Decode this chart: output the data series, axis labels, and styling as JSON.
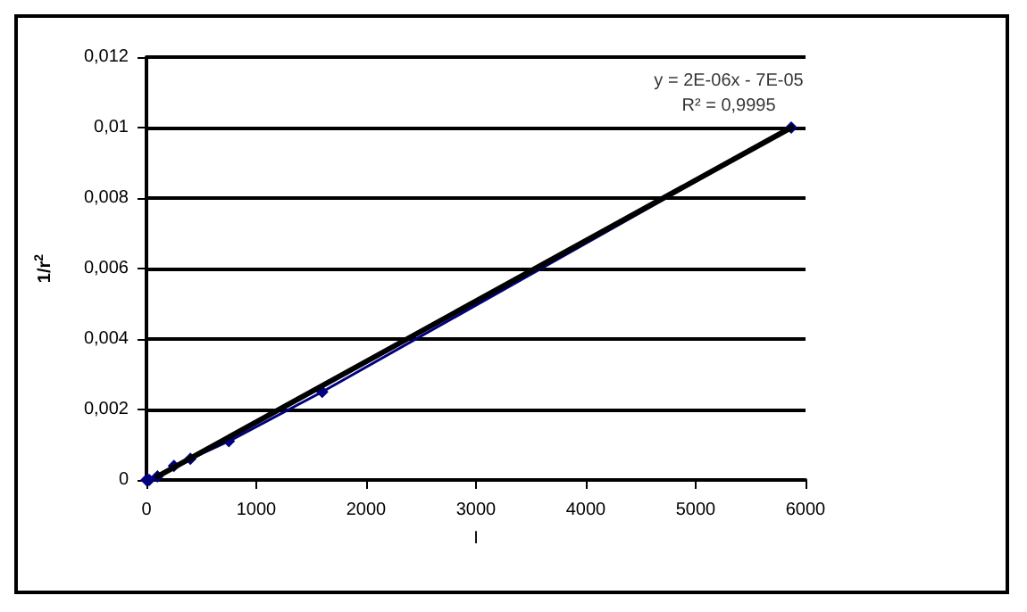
{
  "chart_data": {
    "type": "line",
    "xlabel": "I",
    "ylabel": "1/r$^{2}$",
    "annotations": [
      {
        "text": "y = 2E-06x - 7E-05\nR² = 0,9995",
        "x": 5870,
        "y": 0.01
      }
    ],
    "series": [
      {
        "color": "#000080",
        "x": [
          0,
          25,
          100,
          250,
          400,
          750,
          1600,
          5870
        ],
        "values": [
          0,
          0,
          0.0001,
          0.0004,
          0.0006,
          0.0011,
          0.0025,
          0.01
        ],
        "marker": "diamond"
      },
      {
        "type": "line",
        "color": "#000000",
        "x": [
          100,
          5870
        ],
        "values": [
          0.0001,
          0.01
        ],
        "marker": "none"
      }
    ],
    "xlim": [
      0,
      6000
    ],
    "xticks": [
      0,
      1000,
      2000,
      3000,
      4000,
      5000,
      6000
    ],
    "ylim": [
      0,
      0.012
    ],
    "yticks": [
      {
        "value": 0,
        "label": "0"
      },
      {
        "value": 0.002,
        "label": "0,002"
      },
      {
        "value": 0.004,
        "label": "0,004"
      },
      {
        "value": 0.006,
        "label": "0,006"
      },
      {
        "value": 0.008,
        "label": "0,008"
      },
      {
        "value": 0.01,
        "label": "0,01"
      },
      {
        "value": 0.012,
        "label": "0,012"
      }
    ],
    "grid": "y"
  }
}
